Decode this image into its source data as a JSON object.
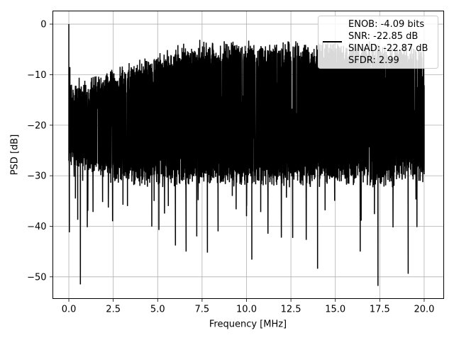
{
  "chart_data": {
    "type": "line",
    "title": "",
    "xlabel": "Frequency [MHz]",
    "ylabel": "PSD [dB]",
    "xlim": [
      -0.9,
      21.1
    ],
    "ylim": [
      -54.3,
      2.6
    ],
    "x_ticks": [
      0.0,
      2.5,
      5.0,
      7.5,
      10.0,
      12.5,
      15.0,
      17.5,
      20.0
    ],
    "x_tick_labels": [
      "0.0",
      "2.5",
      "5.0",
      "7.5",
      "10.0",
      "12.5",
      "15.0",
      "17.5",
      "20.0"
    ],
    "y_ticks": [
      0,
      -10,
      -20,
      -30,
      -40,
      -50
    ],
    "y_tick_labels": [
      "0",
      "−10",
      "−20",
      "−30",
      "−40",
      "−50"
    ],
    "grid": true,
    "legend_position": "top-right",
    "line_color": "#000000",
    "series": [
      {
        "name": "ENOB: -4.09 bits\nSNR: -22.85 dB\nSINAD: -22.87 dB\nSFDR: 2.99",
        "legend_lines": [
          "ENOB: -4.09 bits",
          "SNR: -22.85 dB",
          "SINAD: -22.87 dB",
          "SFDR: 2.99"
        ],
        "x_start": 0.0,
        "x_end": 20.0,
        "peak": {
          "x": 0.0,
          "y": 0.0
        },
        "points": [
          [
            0.0,
            0.0
          ],
          [
            0.03,
            -41.2
          ],
          [
            0.06,
            -8.5
          ],
          [
            0.1,
            -16.3
          ],
          [
            0.15,
            -12.0
          ],
          [
            0.2,
            -24.5
          ],
          [
            0.3,
            -30.2
          ],
          [
            0.37,
            -34.5
          ],
          [
            0.45,
            -12.8
          ],
          [
            0.5,
            -38.7
          ],
          [
            0.58,
            -10.6
          ],
          [
            0.65,
            -51.5
          ],
          [
            0.78,
            -31.0
          ],
          [
            0.9,
            -11.2
          ],
          [
            1.05,
            -36.1
          ],
          [
            1.2,
            -12.9
          ],
          [
            1.4,
            -29.1
          ],
          [
            1.6,
            -12.3
          ],
          [
            1.9,
            -35.2
          ],
          [
            2.3,
            -11.9
          ],
          [
            2.7,
            -30.6
          ],
          [
            3.0,
            -10.1
          ],
          [
            3.3,
            -36.0
          ],
          [
            3.7,
            -9.5
          ],
          [
            4.0,
            -32.0
          ],
          [
            4.4,
            -9.0
          ],
          [
            4.8,
            -35.0
          ],
          [
            5.2,
            -7.8
          ],
          [
            5.6,
            -36.0
          ],
          [
            5.8,
            -8.0
          ],
          [
            6.0,
            -43.8
          ],
          [
            6.3,
            -7.5
          ],
          [
            6.6,
            -45.0
          ],
          [
            6.9,
            -5.8
          ],
          [
            7.2,
            -42.0
          ],
          [
            7.6,
            -3.5
          ],
          [
            7.8,
            -45.2
          ],
          [
            8.1,
            -6.0
          ],
          [
            8.4,
            -41.0
          ],
          [
            8.8,
            -6.4
          ],
          [
            9.2,
            -34.0
          ],
          [
            9.6,
            -5.5
          ],
          [
            10.0,
            -38.0
          ],
          [
            10.3,
            -46.6
          ],
          [
            10.7,
            -5.2
          ],
          [
            11.2,
            -33.0
          ],
          [
            11.6,
            -6.0
          ],
          [
            12.0,
            -31.5
          ],
          [
            12.3,
            -5.5
          ],
          [
            12.6,
            -42.3
          ],
          [
            13.0,
            -7.0
          ],
          [
            13.5,
            -30.0
          ],
          [
            13.8,
            -4.9
          ],
          [
            14.0,
            -48.4
          ],
          [
            14.4,
            -6.5
          ],
          [
            14.9,
            -30.1
          ],
          [
            15.3,
            -5.1
          ],
          [
            15.6,
            -30.2
          ],
          [
            16.0,
            -7.0
          ],
          [
            16.4,
            -45.0
          ],
          [
            16.8,
            -6.5
          ],
          [
            17.2,
            -30.0
          ],
          [
            17.4,
            -51.8
          ],
          [
            17.8,
            -5.5
          ],
          [
            18.3,
            -32.0
          ],
          [
            18.7,
            -5.4
          ],
          [
            19.1,
            -49.4
          ],
          [
            19.4,
            -6.2
          ],
          [
            19.7,
            -31.0
          ],
          [
            20.0,
            -12.1
          ]
        ]
      }
    ]
  }
}
